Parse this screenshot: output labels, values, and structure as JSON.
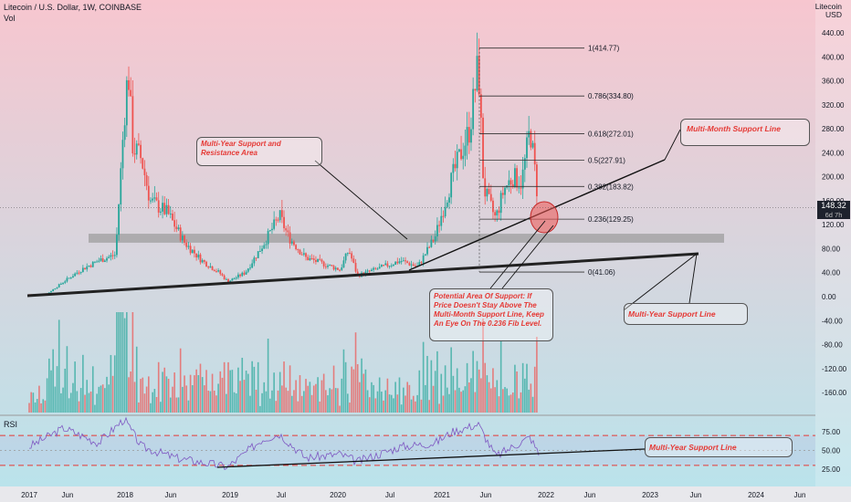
{
  "header": {
    "symbol_line": "Litecoin / U.S. Dollar, 1W, COINBASE",
    "vol_label": "Vol",
    "currency": "USD",
    "coin_header": "Litecoin"
  },
  "rsi_label": "RSI",
  "last_price": {
    "value": "148.32",
    "countdown": "6d 7h"
  },
  "colors": {
    "up": "#26a69a",
    "down": "#ef5350",
    "bg_top": "#f7c6cf",
    "bg_bottom": "#b8e4ec",
    "annotation": "#e53935",
    "support_zone": "#9e9e9e",
    "rsi_line": "#7e57c2"
  },
  "annotations": {
    "multi_year_sr": "Multi-Year Support and Resistance Area",
    "multi_month_support": "Multi-Month Support Line",
    "potential_support": "Potential Area Of Support: If Price Doesn't Stay Above The Multi-Month Support Line, Keep An Eye On The 0.236 Fib Level.",
    "multi_year_support": "Multi-Year Support Line",
    "rsi_multi_year_support": "Multi-Year Support Line"
  },
  "chart_data": {
    "type": "candlestick",
    "x_ticks": [
      "2017",
      "Jun",
      "2018",
      "Jun",
      "2019",
      "Jul",
      "2020",
      "Jul",
      "2021",
      "Jun",
      "2022",
      "Jun",
      "2023",
      "Jun",
      "2024",
      "Jun"
    ],
    "y_ticks": [
      "440.00",
      "400.00",
      "360.00",
      "320.00",
      "280.00",
      "240.00",
      "200.00",
      "160.00",
      "120.00",
      "80.00",
      "40.00",
      "0.00",
      "-40.00",
      "-80.00",
      "-120.00",
      "-160.00"
    ],
    "rsi_ticks": [
      "75.00",
      "50.00",
      "25.00"
    ],
    "fib_levels": [
      {
        "label": "1(414.77)",
        "value": 414.77
      },
      {
        "label": "0.786(334.80)",
        "value": 334.8
      },
      {
        "label": "0.618(272.01)",
        "value": 272.01
      },
      {
        "label": "0.5(227.91)",
        "value": 227.91
      },
      {
        "label": "0.382(183.82)",
        "value": 183.82
      },
      {
        "label": "0.236(129.25)",
        "value": 129.25
      },
      {
        "label": "0(41.06)",
        "value": 41.06
      }
    ],
    "support_zone": [
      90,
      105
    ],
    "price_anchors": [
      [
        "2017-01",
        4
      ],
      [
        "2017-03",
        4
      ],
      [
        "2017-05",
        25
      ],
      [
        "2017-07",
        45
      ],
      [
        "2017-09",
        60
      ],
      [
        "2017-11",
        70
      ],
      [
        "2017-12",
        300
      ],
      [
        "2017-12-15",
        380
      ],
      [
        "2018-01",
        250
      ],
      [
        "2018-02",
        230
      ],
      [
        "2018-03",
        160
      ],
      [
        "2018-05",
        140
      ],
      [
        "2018-07",
        90
      ],
      [
        "2018-09",
        60
      ],
      [
        "2018-11",
        40
      ],
      [
        "2018-12",
        25
      ],
      [
        "2019-02",
        40
      ],
      [
        "2019-04",
        85
      ],
      [
        "2019-06",
        135
      ],
      [
        "2019-07",
        100
      ],
      [
        "2019-09",
        65
      ],
      [
        "2019-11",
        55
      ],
      [
        "2020-01",
        45
      ],
      [
        "2020-02",
        78
      ],
      [
        "2020-03",
        35
      ],
      [
        "2020-05",
        45
      ],
      [
        "2020-08",
        60
      ],
      [
        "2020-10",
        50
      ],
      [
        "2020-12",
        100
      ],
      [
        "2021-02",
        200
      ],
      [
        "2021-04",
        280
      ],
      [
        "2021-05",
        390
      ],
      [
        "2021-05-20",
        180
      ],
      [
        "2021-07",
        130
      ],
      [
        "2021-08",
        180
      ],
      [
        "2021-09",
        200
      ],
      [
        "2021-10",
        190
      ],
      [
        "2021-11",
        280
      ],
      [
        "2021-11-20",
        200
      ],
      [
        "2021-12",
        148
      ]
    ],
    "rsi_anchors": [
      [
        "2017-01",
        55
      ],
      [
        "2017-05",
        80
      ],
      [
        "2017-09",
        60
      ],
      [
        "2017-12",
        92
      ],
      [
        "2018-02",
        55
      ],
      [
        "2018-06",
        40
      ],
      [
        "2018-12",
        28
      ],
      [
        "2019-04",
        65
      ],
      [
        "2019-06",
        72
      ],
      [
        "2019-09",
        40
      ],
      [
        "2020-01",
        45
      ],
      [
        "2020-03",
        35
      ],
      [
        "2020-08",
        55
      ],
      [
        "2020-12",
        60
      ],
      [
        "2021-02",
        75
      ],
      [
        "2021-05",
        85
      ],
      [
        "2021-07",
        42
      ],
      [
        "2021-09",
        55
      ],
      [
        "2021-11",
        68
      ],
      [
        "2021-12",
        45
      ]
    ],
    "last_value": 148.32
  }
}
